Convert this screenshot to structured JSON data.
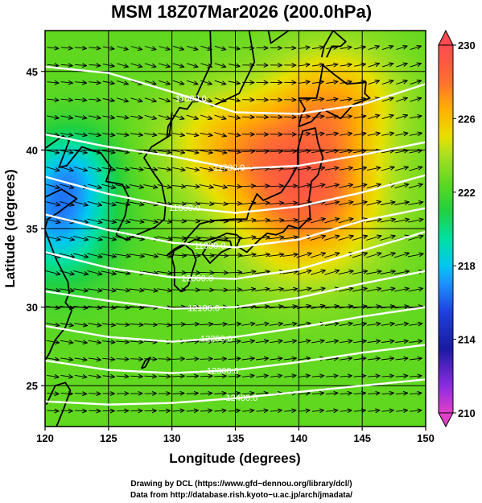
{
  "chart_data": {
    "type": "heatmap",
    "title": "MSM 18Z07Mar2026 (200.0hPa)",
    "xlabel": "Longitude (degrees)",
    "ylabel": "Latitude  (degrees)",
    "xlim": [
      120,
      150
    ],
    "ylim": [
      22.4,
      47.6
    ],
    "x_ticks": [
      120,
      125,
      130,
      135,
      140,
      145,
      150
    ],
    "y_ticks": [
      25,
      30,
      35,
      40,
      45
    ],
    "grid": true,
    "colorbar": {
      "ticks": [
        210,
        214,
        218,
        222,
        226,
        230
      ],
      "range": [
        210,
        230
      ],
      "placement": "right",
      "stops": [
        {
          "value": 210,
          "color": "#e040c8"
        },
        {
          "value": 211.5,
          "color": "#8a2be2"
        },
        {
          "value": 213.5,
          "color": "#1a1aa0"
        },
        {
          "value": 215.5,
          "color": "#1e40e0"
        },
        {
          "value": 217,
          "color": "#1e90ff"
        },
        {
          "value": 218,
          "color": "#00c8f0"
        },
        {
          "value": 219.5,
          "color": "#00e0a0"
        },
        {
          "value": 221,
          "color": "#20d040"
        },
        {
          "value": 222.5,
          "color": "#60d820"
        },
        {
          "value": 224,
          "color": "#a8e020"
        },
        {
          "value": 225,
          "color": "#e8e000"
        },
        {
          "value": 226.5,
          "color": "#ffb000"
        },
        {
          "value": 228,
          "color": "#ff7030"
        },
        {
          "value": 229,
          "color": "#ff5a40"
        },
        {
          "value": 230,
          "color": "#ff4a50"
        }
      ]
    },
    "temperature_field": {
      "base": 222.5,
      "features": [
        {
          "lon": 140.5,
          "lat": 37.5,
          "amp": 6.2,
          "sx": 5.8,
          "sy": 5.2
        },
        {
          "lon": 134.0,
          "lat": 40.5,
          "amp": 2.8,
          "sx": 5.0,
          "sy": 3.5
        },
        {
          "lon": 143.0,
          "lat": 43.5,
          "amp": 3.0,
          "sx": 5.0,
          "sy": 3.5
        },
        {
          "lon": 121.0,
          "lat": 36.0,
          "amp": -5.5,
          "sx": 4.0,
          "sy": 4.0
        },
        {
          "lon": 122.5,
          "lat": 39.0,
          "amp": -2.0,
          "sx": 3.0,
          "sy": 2.5
        }
      ]
    },
    "height_contours": [
      {
        "label": "11600.0",
        "points": [
          [
            120,
            45.3
          ],
          [
            125,
            44.9
          ],
          [
            130,
            43.7
          ],
          [
            135,
            42.4
          ],
          [
            140,
            42.3
          ],
          [
            145,
            42.9
          ],
          [
            150,
            44.2
          ]
        ]
      },
      {
        "label": "11700.0",
        "points": [
          [
            120,
            41.0
          ],
          [
            125,
            40.2
          ],
          [
            130,
            39.6
          ],
          [
            135,
            38.8
          ],
          [
            140,
            39.0
          ],
          [
            145,
            39.7
          ],
          [
            150,
            40.5
          ]
        ]
      },
      {
        "label": "11800.0",
        "points": [
          [
            120,
            38.3
          ],
          [
            125,
            37.2
          ],
          [
            130,
            36.4
          ],
          [
            135,
            36.0
          ],
          [
            140,
            36.4
          ],
          [
            145,
            37.3
          ],
          [
            150,
            38.4
          ]
        ]
      },
      {
        "label": "11900.0",
        "points": [
          [
            120,
            35.9
          ],
          [
            125,
            34.9
          ],
          [
            130,
            34.1
          ],
          [
            135,
            33.8
          ],
          [
            140,
            34.3
          ],
          [
            145,
            35.5
          ],
          [
            150,
            36.3
          ]
        ]
      },
      {
        "label": "12000.0",
        "points": [
          [
            120,
            33.5
          ],
          [
            125,
            32.5
          ],
          [
            130,
            31.9
          ],
          [
            135,
            31.8
          ],
          [
            140,
            32.4
          ],
          [
            145,
            33.6
          ],
          [
            150,
            34.8
          ]
        ]
      },
      {
        "label": "12100.0",
        "points": [
          [
            120,
            31.0
          ],
          [
            125,
            30.4
          ],
          [
            130,
            29.9
          ],
          [
            135,
            30.0
          ],
          [
            140,
            30.6
          ],
          [
            145,
            31.5
          ],
          [
            150,
            32.3
          ]
        ]
      },
      {
        "label": "12200.0",
        "points": [
          [
            120,
            28.8
          ],
          [
            125,
            28.1
          ],
          [
            130,
            27.8
          ],
          [
            135,
            28.1
          ],
          [
            140,
            28.7
          ],
          [
            145,
            29.4
          ],
          [
            150,
            30.0
          ]
        ]
      },
      {
        "label": "12300.0",
        "points": [
          [
            120,
            26.6
          ],
          [
            125,
            26.0
          ],
          [
            130,
            25.8
          ],
          [
            135,
            26.0
          ],
          [
            140,
            26.5
          ],
          [
            145,
            27.1
          ],
          [
            150,
            27.6
          ]
        ]
      },
      {
        "label": "12400.0",
        "points": [
          [
            120,
            24.0
          ],
          [
            125,
            23.8
          ],
          [
            130,
            23.9
          ],
          [
            135,
            24.2
          ],
          [
            140,
            24.6
          ],
          [
            145,
            25.0
          ],
          [
            150,
            25.4
          ]
        ]
      }
    ],
    "coastlines": [
      [
        [
          125.6,
          34.6
        ],
        [
          126.4,
          34.3
        ],
        [
          127.5,
          34.7
        ],
        [
          128.7,
          35.1
        ],
        [
          129.4,
          35.6
        ],
        [
          129.5,
          36.6
        ],
        [
          129.2,
          37.8
        ],
        [
          128.5,
          38.6
        ],
        [
          127.8,
          39.5
        ],
        [
          128.4,
          40.2
        ],
        [
          129.8,
          40.9
        ],
        [
          130.0,
          42.4
        ]
      ],
      [
        [
          125.6,
          34.6
        ],
        [
          126.3,
          35.8
        ],
        [
          126.6,
          37.0
        ],
        [
          126.1,
          37.8
        ],
        [
          124.8,
          38.0
        ],
        [
          125.2,
          38.9
        ],
        [
          124.4,
          39.8
        ],
        [
          122.9,
          40.2
        ],
        [
          121.7,
          39.0
        ],
        [
          121.1,
          38.9
        ],
        [
          121.9,
          40.6
        ],
        [
          121.4,
          40.9
        ],
        [
          120.0,
          40.1
        ]
      ],
      [
        [
          120.0,
          37.0
        ],
        [
          121.3,
          37.5
        ],
        [
          122.5,
          36.9
        ],
        [
          121.0,
          36.0
        ],
        [
          120.2,
          35.6
        ],
        [
          120.0,
          35.0
        ]
      ],
      [
        [
          120.0,
          34.9
        ],
        [
          120.9,
          33.0
        ],
        [
          121.8,
          31.6
        ],
        [
          121.9,
          30.9
        ],
        [
          121.6,
          30.3
        ],
        [
          122.1,
          29.8
        ],
        [
          121.6,
          28.7
        ],
        [
          120.8,
          27.9
        ],
        [
          120.3,
          27.0
        ],
        [
          119.6,
          26.1
        ]
      ],
      [
        [
          120.1,
          23.8
        ],
        [
          120.8,
          25.0
        ],
        [
          121.6,
          25.2
        ],
        [
          122.0,
          24.7
        ],
        [
          121.5,
          23.6
        ],
        [
          120.9,
          22.4
        ]
      ],
      [
        [
          129.6,
          33.3
        ],
        [
          130.4,
          33.7
        ],
        [
          131.1,
          34.0
        ],
        [
          131.8,
          34.3
        ],
        [
          132.5,
          34.2
        ],
        [
          133.5,
          34.4
        ],
        [
          134.3,
          34.7
        ],
        [
          135.1,
          34.6
        ],
        [
          135.4,
          34.4
        ],
        [
          135.1,
          33.9
        ],
        [
          135.9,
          33.5
        ],
        [
          136.9,
          34.3
        ],
        [
          137.5,
          34.7
        ],
        [
          138.2,
          34.6
        ],
        [
          138.8,
          34.8
        ],
        [
          139.2,
          35.2
        ],
        [
          140.0,
          35.0
        ],
        [
          140.9,
          35.7
        ],
        [
          140.8,
          36.8
        ],
        [
          141.0,
          38.0
        ],
        [
          141.5,
          38.4
        ],
        [
          141.9,
          39.5
        ],
        [
          141.5,
          40.5
        ],
        [
          141.3,
          41.4
        ],
        [
          140.3,
          41.2
        ],
        [
          139.9,
          40.0
        ],
        [
          139.9,
          39.0
        ],
        [
          139.2,
          38.0
        ],
        [
          138.6,
          37.3
        ],
        [
          137.2,
          36.8
        ],
        [
          136.7,
          37.2
        ],
        [
          136.1,
          36.2
        ],
        [
          135.9,
          35.6
        ],
        [
          134.9,
          35.6
        ],
        [
          133.2,
          35.5
        ],
        [
          132.2,
          35.3
        ],
        [
          131.3,
          34.5
        ],
        [
          130.9,
          34.0
        ],
        [
          130.2,
          33.7
        ],
        [
          129.6,
          33.3
        ]
      ],
      [
        [
          130.2,
          33.7
        ],
        [
          130.0,
          33.1
        ],
        [
          130.2,
          32.5
        ],
        [
          130.2,
          31.4
        ],
        [
          130.7,
          31.0
        ],
        [
          131.3,
          31.4
        ],
        [
          131.7,
          32.5
        ],
        [
          131.9,
          33.0
        ],
        [
          131.6,
          33.6
        ],
        [
          131.1,
          33.9
        ]
      ],
      [
        [
          132.4,
          33.4
        ],
        [
          133.0,
          32.8
        ],
        [
          133.9,
          33.5
        ],
        [
          134.7,
          33.8
        ],
        [
          134.6,
          34.2
        ],
        [
          133.6,
          34.3
        ],
        [
          132.9,
          34.0
        ],
        [
          132.4,
          33.4
        ]
      ],
      [
        [
          140.0,
          41.5
        ],
        [
          140.2,
          42.2
        ],
        [
          140.5,
          42.6
        ],
        [
          140.0,
          43.3
        ],
        [
          141.4,
          43.3
        ],
        [
          141.7,
          44.4
        ],
        [
          141.9,
          45.4
        ],
        [
          142.8,
          44.8
        ],
        [
          143.8,
          44.2
        ],
        [
          145.3,
          44.3
        ],
        [
          145.2,
          43.6
        ],
        [
          145.6,
          43.3
        ],
        [
          144.3,
          42.9
        ],
        [
          143.3,
          42.0
        ],
        [
          141.9,
          42.6
        ],
        [
          141.0,
          41.8
        ],
        [
          140.0,
          41.5
        ]
      ],
      [
        [
          141.8,
          45.9
        ],
        [
          142.0,
          46.6
        ],
        [
          142.7,
          47.6
        ],
        [
          143.7,
          46.9
        ],
        [
          143.3,
          46.6
        ],
        [
          142.6,
          46.6
        ],
        [
          142.2,
          45.9
        ]
      ],
      [
        [
          127.6,
          26.1
        ],
        [
          127.9,
          26.6
        ],
        [
          128.3,
          26.8
        ],
        [
          127.9,
          26.2
        ],
        [
          127.6,
          26.1
        ]
      ],
      [
        [
          128.2,
          48.0
        ],
        [
          130.7,
          48.4
        ],
        [
          133.0,
          48.0
        ],
        [
          133.1,
          45.5
        ],
        [
          131.9,
          43.4
        ],
        [
          131.2,
          42.6
        ],
        [
          130.6,
          42.7
        ],
        [
          129.7,
          41.5
        ],
        [
          129.6,
          40.8
        ]
      ],
      [
        [
          136.0,
          48.0
        ],
        [
          136.5,
          45.6
        ],
        [
          135.3,
          43.6
        ],
        [
          133.2,
          42.8
        ],
        [
          132.3,
          43.2
        ],
        [
          131.9,
          43.4
        ]
      ],
      [
        [
          137.5,
          48.0
        ],
        [
          137.8,
          46.8
        ],
        [
          138.5,
          47.2
        ],
        [
          139.9,
          48.0
        ]
      ]
    ]
  },
  "credits": {
    "line1": "Drawing by DCL (https://www.gfd−dennou.org/library/dcl/)",
    "line2": "Data from http://database.rish.kyoto−u.ac.jp/arch/jmadata/"
  }
}
